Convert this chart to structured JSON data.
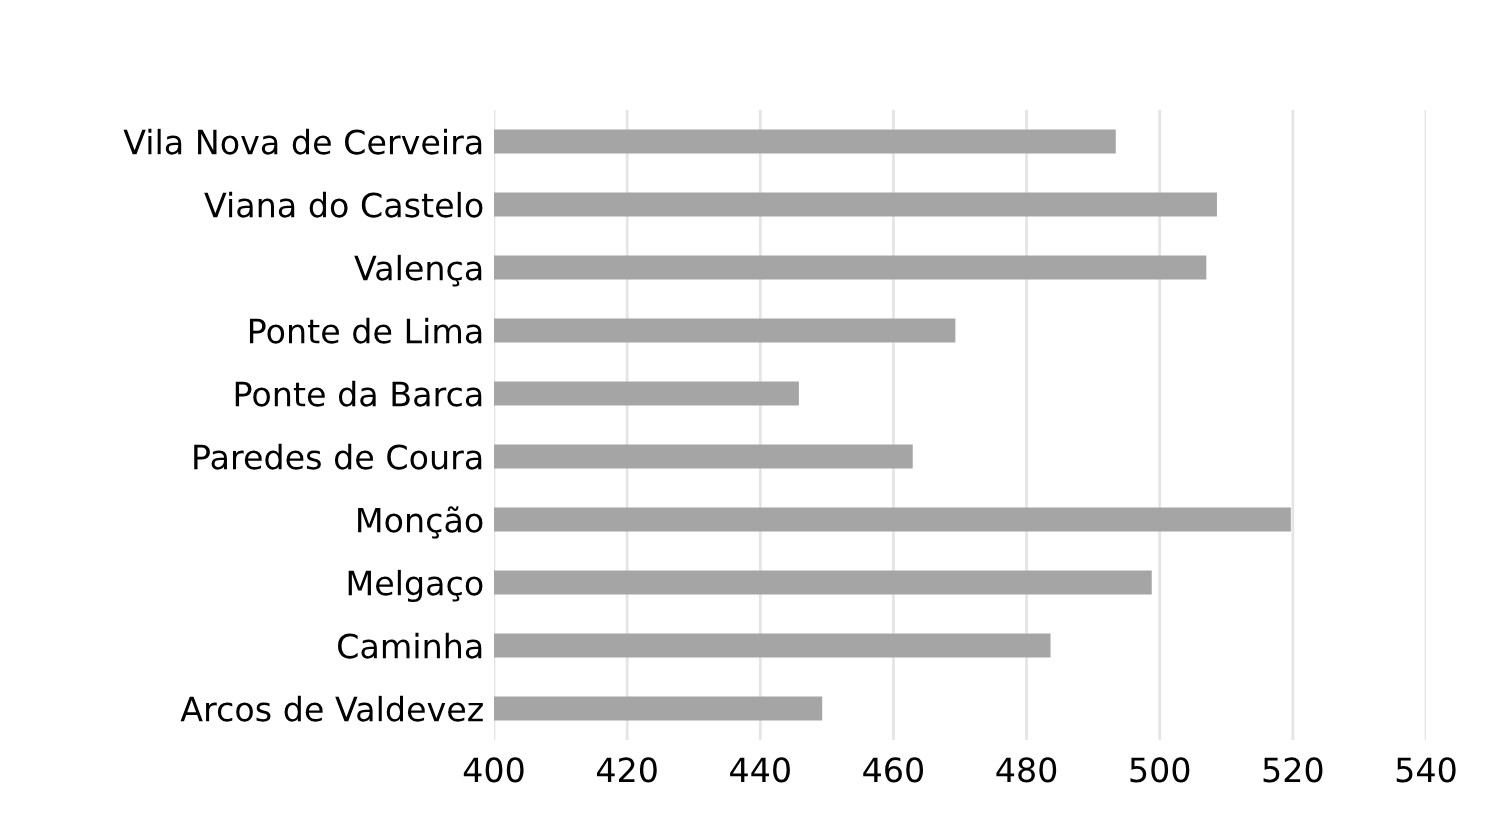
{
  "chart_data": {
    "type": "bar",
    "orientation": "horizontal",
    "categories": [
      "Vila Nova de Cerveira",
      "Viana do Castelo",
      "Valença",
      "Ponte de Lima",
      "Ponte da Barca",
      "Paredes de Coura",
      "Monção",
      "Melgaço",
      "Caminha",
      "Arcos de Valdevez"
    ],
    "values": [
      493.4,
      508.6,
      507.0,
      469.3,
      445.8,
      462.9,
      519.7,
      498.8,
      483.6,
      449.3
    ],
    "color": "#a5a5a5",
    "xlim": [
      400,
      540
    ],
    "xticks": [
      400,
      420,
      440,
      460,
      480,
      500,
      520,
      540
    ],
    "grid": "x"
  }
}
